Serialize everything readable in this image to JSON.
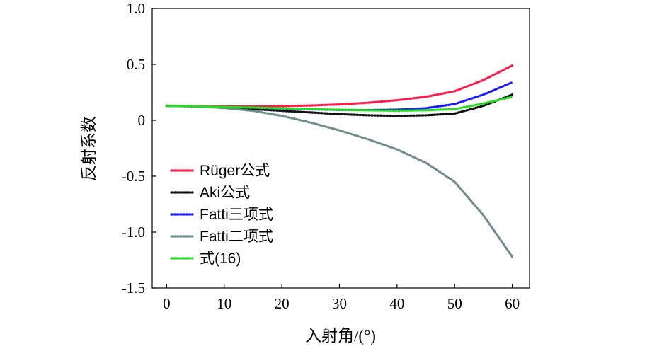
{
  "chart_data": {
    "type": "line",
    "xlabel": "入射角/(°)",
    "ylabel": "反射系数",
    "xlim": [
      -2.5,
      63
    ],
    "ylim": [
      -1.5,
      1.0
    ],
    "xticks": [
      0,
      10,
      20,
      30,
      40,
      50,
      60
    ],
    "yticks": [
      1.0,
      0.5,
      0,
      -0.5,
      -1.0,
      -1.5
    ],
    "xtick_labels": [
      "0",
      "10",
      "20",
      "30",
      "40",
      "50",
      "60"
    ],
    "ytick_labels": [
      "1.0",
      "0.5",
      "0",
      "-0.5",
      "-1.0",
      "-1.5"
    ],
    "grid": false,
    "legend_position": "lower-left",
    "line_style": "dotted",
    "x": [
      0,
      5,
      10,
      15,
      20,
      25,
      30,
      35,
      40,
      45,
      50,
      55,
      60
    ],
    "series": [
      {
        "name": "Rüger公式",
        "color": "#ff1a4b",
        "values": [
          0.13,
          0.128,
          0.126,
          0.125,
          0.127,
          0.132,
          0.142,
          0.157,
          0.18,
          0.21,
          0.26,
          0.36,
          0.49
        ]
      },
      {
        "name": "Aki公式",
        "color": "#111111",
        "values": [
          0.13,
          0.124,
          0.115,
          0.1,
          0.085,
          0.07,
          0.055,
          0.045,
          0.04,
          0.045,
          0.06,
          0.13,
          0.23
        ]
      },
      {
        "name": "Fatti三项式",
        "color": "#1a1aff",
        "values": [
          0.13,
          0.126,
          0.12,
          0.112,
          0.105,
          0.098,
          0.093,
          0.092,
          0.095,
          0.108,
          0.145,
          0.23,
          0.34
        ]
      },
      {
        "name": "Fatti二项式",
        "color": "#6e8c8c",
        "values": [
          0.13,
          0.125,
          0.11,
          0.085,
          0.04,
          -0.02,
          -0.09,
          -0.17,
          -0.26,
          -0.38,
          -0.55,
          -0.85,
          -1.22
        ]
      },
      {
        "name": "式(16)",
        "color": "#22dd22",
        "values": [
          0.13,
          0.126,
          0.12,
          0.114,
          0.107,
          0.1,
          0.094,
          0.089,
          0.086,
          0.09,
          0.1,
          0.15,
          0.21
        ]
      }
    ]
  }
}
